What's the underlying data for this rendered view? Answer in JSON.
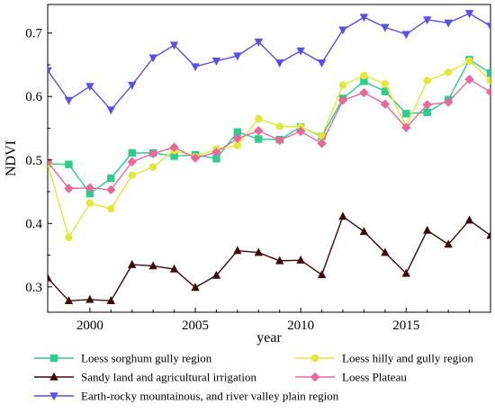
{
  "chart_data": {
    "type": "line",
    "title": "",
    "xlabel": "year",
    "ylabel": "NDVI",
    "xlim": [
      1998,
      2019
    ],
    "ylim": [
      0.26,
      0.745
    ],
    "x_ticks": [
      2000,
      2005,
      2010,
      2015
    ],
    "y_ticks": [
      0.3,
      0.4,
      0.5,
      0.6,
      0.7
    ],
    "y_tick_labels": [
      "0.3",
      "0.4",
      "0.5",
      "0.6",
      "0.7"
    ],
    "grid": false,
    "legend_position": "bottom",
    "x": [
      1998,
      1999,
      2000,
      2001,
      2002,
      2003,
      2004,
      2005,
      2006,
      2007,
      2008,
      2009,
      2010,
      2011,
      2012,
      2013,
      2014,
      2015,
      2016,
      2017,
      2018,
      2019
    ],
    "series": [
      {
        "name": "Loess sorghum gully region",
        "color": "#2ecc8e",
        "marker": "square",
        "values": [
          0.494,
          0.493,
          0.447,
          0.471,
          0.511,
          0.511,
          0.506,
          0.508,
          0.502,
          0.544,
          0.533,
          0.532,
          0.552,
          0.537,
          0.597,
          0.624,
          0.608,
          0.573,
          0.575,
          0.595,
          0.658,
          0.637
        ]
      },
      {
        "name": "Loess hilly and gully region",
        "color": "#e0e83a",
        "marker": "circle",
        "values": [
          0.494,
          0.378,
          0.432,
          0.423,
          0.476,
          0.489,
          0.515,
          0.505,
          0.517,
          0.523,
          0.565,
          0.553,
          0.552,
          0.538,
          0.618,
          0.633,
          0.62,
          0.553,
          0.625,
          0.638,
          0.656,
          0.625
        ]
      },
      {
        "name": "Sandy land and agricultural irrigation",
        "color": "#3d0a0a",
        "marker": "triangle-up",
        "values": [
          0.314,
          0.278,
          0.28,
          0.278,
          0.335,
          0.333,
          0.328,
          0.299,
          0.318,
          0.357,
          0.354,
          0.341,
          0.342,
          0.319,
          0.411,
          0.387,
          0.354,
          0.321,
          0.389,
          0.367,
          0.405,
          0.381
        ]
      },
      {
        "name": "Loess Plateau",
        "color": "#e8689a",
        "marker": "diamond",
        "values": [
          0.497,
          0.455,
          0.456,
          0.453,
          0.497,
          0.51,
          0.52,
          0.503,
          0.512,
          0.534,
          0.546,
          0.531,
          0.545,
          0.526,
          0.594,
          0.606,
          0.588,
          0.551,
          0.587,
          0.591,
          0.627,
          0.607
        ]
      },
      {
        "name": "Earth-rocky mountainous, and river valley plain region",
        "color": "#5b4fe6",
        "marker": "triangle-down",
        "values": [
          0.641,
          0.594,
          0.616,
          0.579,
          0.618,
          0.661,
          0.681,
          0.647,
          0.656,
          0.664,
          0.686,
          0.653,
          0.672,
          0.653,
          0.705,
          0.725,
          0.709,
          0.698,
          0.721,
          0.716,
          0.731,
          0.711
        ]
      }
    ]
  }
}
